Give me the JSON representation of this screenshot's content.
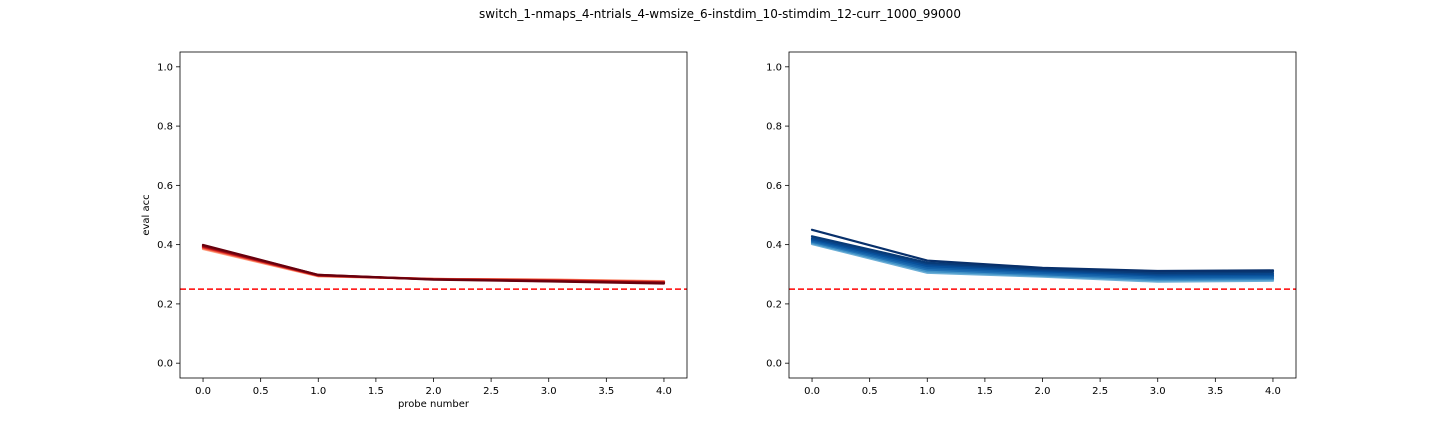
{
  "figure": {
    "title": "switch_1-nmaps_4-ntrials_4-wmsize_6-instdim_10-stimdim_12-curr_1000_99000"
  },
  "chart_data": [
    {
      "type": "line",
      "xlabel": "probe number",
      "ylabel": "eval acc",
      "xlim": [
        -0.2,
        4.2
      ],
      "ylim": [
        -0.05,
        1.05
      ],
      "x_ticks": [
        "0.0",
        "0.5",
        "1.0",
        "1.5",
        "2.0",
        "2.5",
        "3.0",
        "3.5",
        "4.0"
      ],
      "y_ticks": [
        "0.0",
        "0.2",
        "0.4",
        "0.6",
        "0.8",
        "1.0"
      ],
      "grid": false,
      "x": [
        0,
        1,
        2,
        3,
        4
      ],
      "reference_line": {
        "y": 0.25,
        "color": "#ff0000",
        "style": "dashed"
      },
      "colormap": "Reds",
      "series": [
        {
          "values": [
            0.385,
            0.293,
            0.284,
            0.282,
            0.277
          ],
          "color": "#fcae91"
        },
        {
          "values": [
            0.387,
            0.294,
            0.284,
            0.282,
            0.276
          ],
          "color": "#fb8a6a"
        },
        {
          "values": [
            0.389,
            0.295,
            0.284,
            0.281,
            0.275
          ],
          "color": "#f4634a"
        },
        {
          "values": [
            0.391,
            0.296,
            0.284,
            0.28,
            0.274
          ],
          "color": "#e33a2c"
        },
        {
          "values": [
            0.393,
            0.296,
            0.283,
            0.279,
            0.273
          ],
          "color": "#c7171c"
        },
        {
          "values": [
            0.395,
            0.297,
            0.283,
            0.278,
            0.272
          ],
          "color": "#a50f15"
        },
        {
          "values": [
            0.397,
            0.298,
            0.283,
            0.277,
            0.271
          ],
          "color": "#870a12"
        },
        {
          "values": [
            0.399,
            0.298,
            0.282,
            0.276,
            0.269
          ],
          "color": "#67000d"
        }
      ]
    },
    {
      "type": "line",
      "xlabel": "",
      "ylabel": "",
      "xlim": [
        -0.2,
        4.2
      ],
      "ylim": [
        -0.05,
        1.05
      ],
      "x_ticks": [
        "0.0",
        "0.5",
        "1.0",
        "1.5",
        "2.0",
        "2.5",
        "3.0",
        "3.5",
        "4.0"
      ],
      "y_ticks": [
        "0.0",
        "0.2",
        "0.4",
        "0.6",
        "0.8",
        "1.0"
      ],
      "grid": false,
      "x": [
        0,
        1,
        2,
        3,
        4
      ],
      "reference_line": {
        "y": 0.25,
        "color": "#ff0000",
        "style": "dashed"
      },
      "colormap": "Blues",
      "series": [
        {
          "values": [
            0.402,
            0.305,
            0.292,
            0.275,
            0.278
          ],
          "color": "#6baed6"
        },
        {
          "values": [
            0.406,
            0.31,
            0.296,
            0.28,
            0.283
          ],
          "color": "#4292c6"
        },
        {
          "values": [
            0.41,
            0.316,
            0.3,
            0.285,
            0.287
          ],
          "color": "#2171b5"
        },
        {
          "values": [
            0.414,
            0.322,
            0.305,
            0.29,
            0.292
          ],
          "color": "#1461a8"
        },
        {
          "values": [
            0.418,
            0.328,
            0.31,
            0.296,
            0.297
          ],
          "color": "#08519c"
        },
        {
          "values": [
            0.422,
            0.334,
            0.314,
            0.3,
            0.302
          ],
          "color": "#08458a"
        },
        {
          "values": [
            0.428,
            0.339,
            0.318,
            0.305,
            0.308
          ],
          "color": "#083b78"
        },
        {
          "values": [
            0.45,
            0.346,
            0.322,
            0.311,
            0.313
          ],
          "color": "#08306b"
        }
      ]
    }
  ]
}
